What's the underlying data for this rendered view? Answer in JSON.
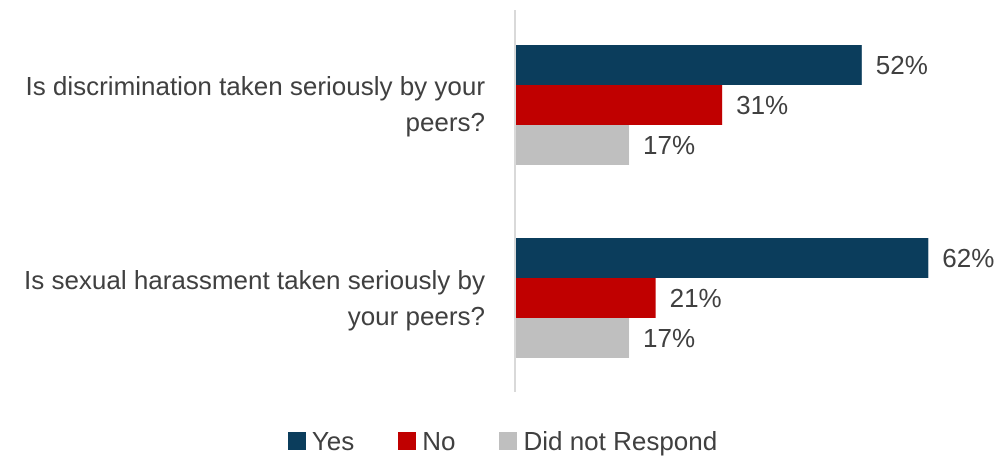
{
  "chart_data": {
    "type": "bar",
    "orientation": "horizontal",
    "categories": [
      "Is discrimination taken seriously by your peers?",
      "Is sexual harassment taken seriously by your peers?"
    ],
    "series": [
      {
        "name": "Yes",
        "values": [
          52,
          62
        ],
        "labels": [
          "52%",
          "62%"
        ],
        "color": "#0B3D5C"
      },
      {
        "name": "No",
        "values": [
          31,
          21
        ],
        "labels": [
          "31%",
          "21%"
        ],
        "color": "#C00000"
      },
      {
        "name": "Did not Respond",
        "values": [
          17,
          17
        ],
        "labels": [
          "17%",
          "17%"
        ],
        "color": "#BFBFBF"
      }
    ],
    "unit": "%",
    "legend_position": "bottom",
    "grid": false
  }
}
